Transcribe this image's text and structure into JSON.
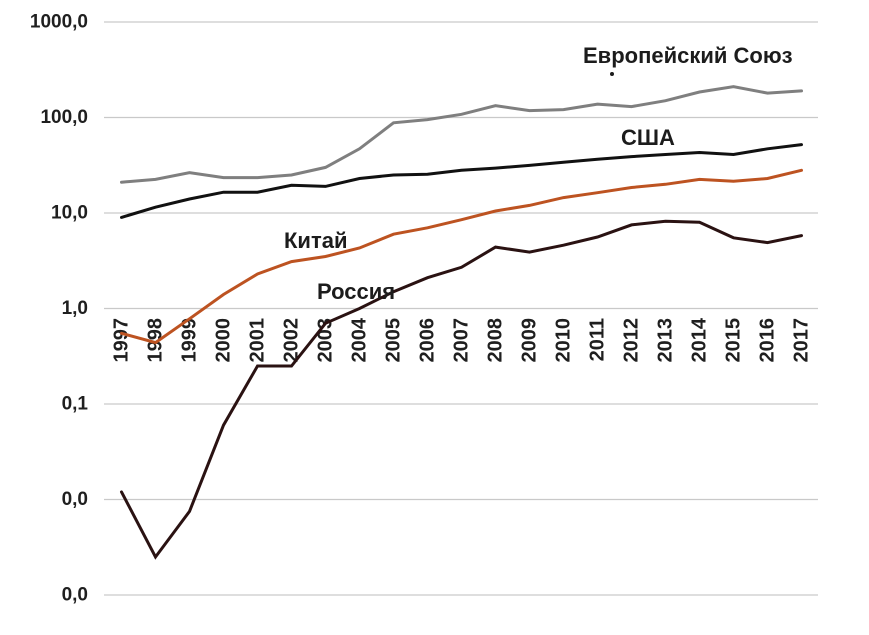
{
  "chart_data": {
    "type": "line",
    "title": "",
    "xlabel": "",
    "ylabel": "",
    "y_scale": "log",
    "ylim": [
      0.001,
      1000
    ],
    "grid": true,
    "legend": "inline-labels",
    "y_ticks": {
      "values": [
        1000,
        100,
        10,
        1,
        0.1,
        0.01,
        0.001
      ],
      "labels": [
        "1000,0",
        "100,0",
        "10,0",
        "1,0",
        "0,1",
        "0,0",
        "0,0"
      ]
    },
    "x": [
      1997,
      1998,
      1999,
      2000,
      2001,
      2002,
      2003,
      2004,
      2005,
      2006,
      2007,
      2008,
      2009,
      2010,
      2011,
      2012,
      2013,
      2014,
      2015,
      2016,
      2017
    ],
    "series": [
      {
        "name": "Европейский Союз",
        "color": "#7f7f7f",
        "values": [
          21,
          22.5,
          26.5,
          23.5,
          23.5,
          25,
          30,
          47,
          88,
          95,
          108,
          133,
          118,
          121,
          138,
          130,
          150,
          185,
          210,
          180,
          190
        ]
      },
      {
        "name": "США",
        "color": "#111111",
        "values": [
          9,
          11.5,
          14,
          16.5,
          16.5,
          19.5,
          19,
          23,
          25,
          25.5,
          28,
          29.5,
          31.5,
          34,
          36.5,
          39,
          41,
          43,
          41,
          47,
          52
        ]
      },
      {
        "name": "Китай",
        "color": "#bd5321",
        "values": [
          0.55,
          0.44,
          0.78,
          1.4,
          2.3,
          3.1,
          3.5,
          4.3,
          6.0,
          7.0,
          8.5,
          10.5,
          12,
          14.5,
          16.3,
          18.5,
          20,
          22.5,
          21.5,
          23,
          28
        ]
      },
      {
        "name": "Россия",
        "color": "#2a1212",
        "values": [
          0.012,
          0.0025,
          0.0075,
          0.06,
          0.25,
          0.25,
          0.7,
          1.0,
          1.5,
          2.1,
          2.7,
          4.4,
          3.9,
          4.6,
          5.6,
          7.5,
          8.2,
          8.0,
          5.5,
          4.9,
          5.8
        ]
      }
    ]
  },
  "annotations": {
    "eu_label": "Европейский Союз",
    "usa_label": "США",
    "china_label": "Китай",
    "russia_label": "Россия"
  }
}
